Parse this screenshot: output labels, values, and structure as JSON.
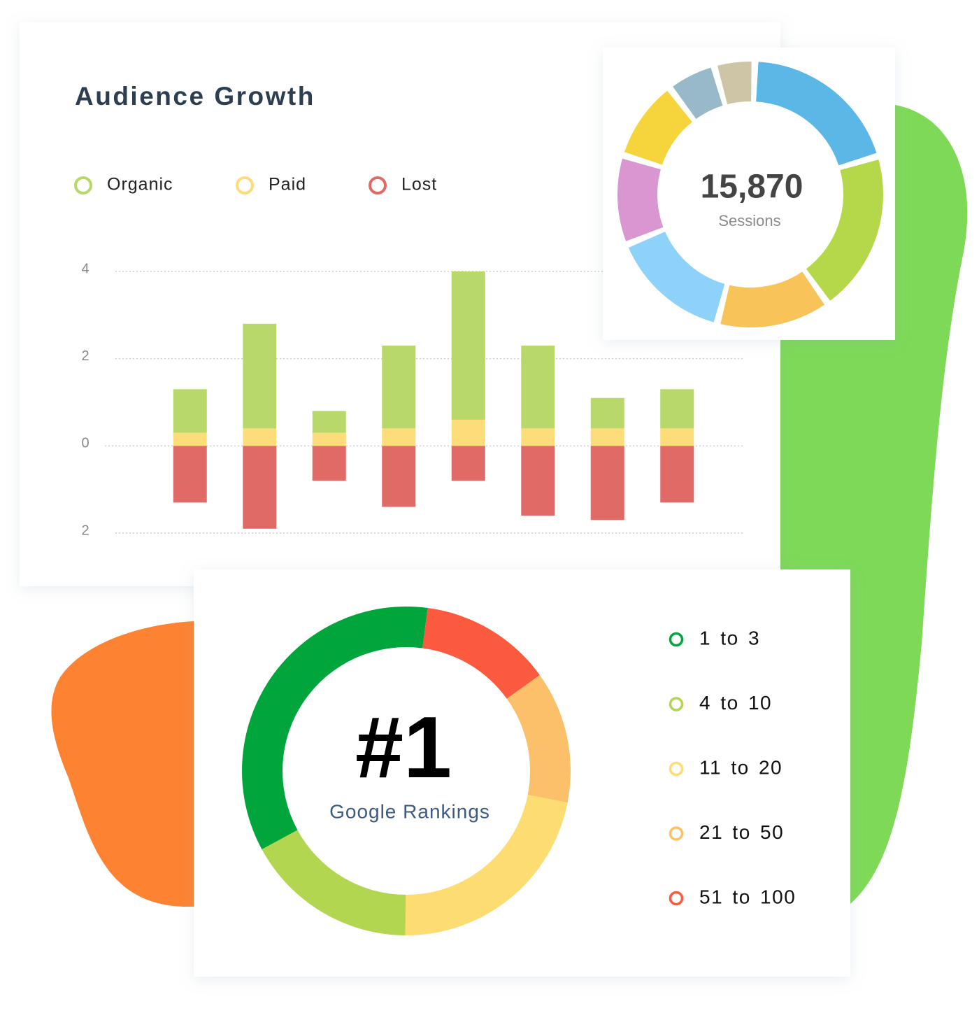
{
  "chart_data": [
    {
      "type": "bar",
      "stacked": true,
      "title": "Audience Growth",
      "categories": [
        null,
        null,
        null,
        null,
        null,
        null,
        null,
        null
      ],
      "series": [
        {
          "name": "Organic",
          "color": "#b8d96a",
          "values": [
            1.0,
            2.4,
            0.5,
            1.9,
            3.4,
            1.9,
            0.7,
            0.9
          ]
        },
        {
          "name": "Paid",
          "color": "#fddc7a",
          "values": [
            0.3,
            0.4,
            0.3,
            0.4,
            0.6,
            0.4,
            0.4,
            0.4
          ]
        },
        {
          "name": "Lost",
          "color": "#e06b66",
          "values": [
            -1.3,
            -1.9,
            -0.8,
            -1.4,
            -0.8,
            -1.6,
            -1.7,
            -1.3
          ]
        }
      ],
      "ylim": [
        -2,
        4
      ],
      "yticks": [
        4,
        2,
        0,
        {
          "value": -2,
          "label": "2"
        }
      ],
      "grid": true
    },
    {
      "type": "pie",
      "donut": true,
      "center_text": "15,870",
      "center_label": "Sessions",
      "values": [
        20,
        20,
        14,
        15,
        11,
        10,
        6,
        5
      ],
      "colors": [
        "#5ab7e6",
        "#b4d84a",
        "#f8c45a",
        "#8ed2fa",
        "#d996d0",
        "#f5d43c",
        "#97b9c9",
        "#cdc5a5"
      ]
    },
    {
      "type": "pie",
      "donut": true,
      "center_text": "#1",
      "center_label": "Google Rankings",
      "categories": [
        "1 to 3",
        "4 to 10",
        "11 to 20",
        "21 to 50",
        "51 to 100"
      ],
      "values": [
        35,
        17,
        22,
        13,
        13
      ],
      "colors": [
        "#00a53c",
        "#b2d650",
        "#fddc72",
        "#fdc06a",
        "#fb5a3e"
      ]
    }
  ]
}
